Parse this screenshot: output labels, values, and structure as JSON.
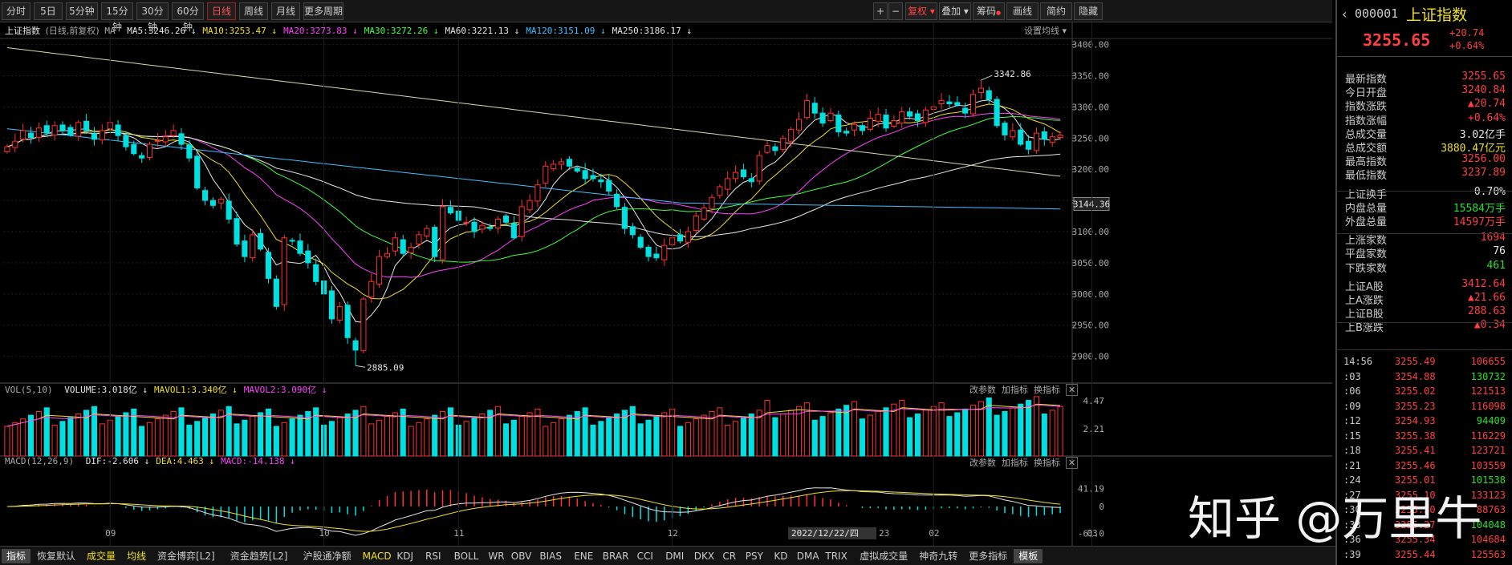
{
  "toolbar": {
    "periods": [
      "分时",
      "5日",
      "5分钟",
      "15分钟",
      "30分钟",
      "60分钟",
      "日线",
      "周线",
      "月线",
      "更多周期"
    ],
    "active_period": "日线",
    "right_buttons": [
      "复权",
      "叠加",
      "筹码",
      "画线",
      "简约",
      "隐藏"
    ],
    "plus": "+",
    "minus": "−"
  },
  "main": {
    "title": "上证指数",
    "subtitle": "(日线,前复权)",
    "ma_label": "MA",
    "ma_items": [
      {
        "text": "MA5:3246.26",
        "color": "#e6e6e6"
      },
      {
        "text": "MA10:3253.47",
        "color": "#f0e020"
      },
      {
        "text": "MA20:3273.83",
        "color": "#ff40ff"
      },
      {
        "text": "MA30:3272.26",
        "color": "#40ff40"
      },
      {
        "text": "MA60:3221.13",
        "color": "#e6e6e6"
      },
      {
        "text": "MA120:3151.09",
        "color": "#40c0ff"
      },
      {
        "text": "MA250:3186.17",
        "color": "#e6e6e6"
      }
    ],
    "settings": "设置均线",
    "high_label": "3342.86",
    "low_label": "2885.09",
    "current_price_tag": "3144.36",
    "y_ticks": [
      "3400.00",
      "3350.00",
      "3300.00",
      "3250.00",
      "3200.00",
      "3150.00",
      "3100.00",
      "3050.00",
      "3000.00",
      "2950.00",
      "2900.00"
    ],
    "x_labels": [
      "09",
      "10",
      "11",
      "12",
      "02",
      "03"
    ],
    "date_tag": "2022/12/22/四",
    "date_tag_suffix": "23"
  },
  "volume": {
    "title": "VOL(5,10)",
    "items": [
      {
        "text": "VOLUME:3.018亿",
        "color": "#e6e6e6"
      },
      {
        "text": "MAVOL1:3.340亿",
        "color": "#f0e020"
      },
      {
        "text": "MAVOL2:3.090亿",
        "color": "#ff40ff"
      }
    ],
    "y_ticks": [
      "4.47",
      "2.21"
    ],
    "actions": [
      "改参数",
      "加指标",
      "换指标"
    ]
  },
  "macd": {
    "title": "MACD(12,26,9)",
    "items": [
      {
        "text": "DIF:-2.606",
        "color": "#e6e6e6"
      },
      {
        "text": "DEA:4.463",
        "color": "#f0e020"
      },
      {
        "text": "MACD:-14.138",
        "color": "#ff40ff"
      }
    ],
    "y_ticks": [
      "41.19",
      "0",
      "-61.0"
    ],
    "actions": [
      "改参数",
      "加指标",
      "换指标"
    ]
  },
  "panel": {
    "code": "000001",
    "name": "上证指数",
    "price": "3255.65",
    "change": "+20.74",
    "change_pct": "+0.64%",
    "stats": [
      {
        "label": "最新指数",
        "value": "3255.65",
        "color": "red"
      },
      {
        "label": "今日开盘",
        "value": "3240.84",
        "color": "red"
      },
      {
        "label": "指数涨跌",
        "value": "▲20.74",
        "color": "red"
      },
      {
        "label": "指数涨幅",
        "value": "+0.64%",
        "color": "red"
      },
      {
        "label": "总成交量",
        "value": "3.02亿手",
        "color": "white"
      },
      {
        "label": "总成交额",
        "value": "3880.47亿元",
        "color": "yellow"
      },
      {
        "label": "最高指数",
        "value": "3256.00",
        "color": "red"
      },
      {
        "label": "最低指数",
        "value": "3237.89",
        "color": "red"
      },
      {
        "label": "上证换手",
        "value": "0.70%",
        "color": "white"
      },
      {
        "label": "内盘总量",
        "value": "15584万手",
        "color": "green"
      },
      {
        "label": "外盘总量",
        "value": "14597万手",
        "color": "red"
      },
      {
        "label": "上涨家数",
        "value": "1694",
        "color": "red"
      },
      {
        "label": "平盘家数",
        "value": "76",
        "color": "white"
      },
      {
        "label": "下跌家数",
        "value": "461",
        "color": "green"
      },
      {
        "label": "上证A股",
        "value": "3412.64",
        "color": "red"
      },
      {
        "label": "上A涨跌",
        "value": "▲21.66",
        "color": "red"
      },
      {
        "label": "上证B股",
        "value": "288.63",
        "color": "red"
      },
      {
        "label": "上B涨跌",
        "value": "▲0.34",
        "color": "red"
      }
    ],
    "ticks": [
      {
        "time": "14:56",
        "price": "3255.49",
        "vol": "106655",
        "vc": "red"
      },
      {
        "time": ":03",
        "price": "3254.88",
        "vol": "130732",
        "vc": "green"
      },
      {
        "time": ":06",
        "price": "3255.02",
        "vol": "121513",
        "vc": "red"
      },
      {
        "time": ":09",
        "price": "3255.23",
        "vol": "116098",
        "vc": "red"
      },
      {
        "time": ":12",
        "price": "3254.93",
        "vol": "94409",
        "vc": "green"
      },
      {
        "time": ":15",
        "price": "3255.38",
        "vol": "116229",
        "vc": "red"
      },
      {
        "time": ":18",
        "price": "3255.41",
        "vol": "123721",
        "vc": "red"
      },
      {
        "time": ":21",
        "price": "3255.46",
        "vol": "103559",
        "vc": "red"
      },
      {
        "time": ":24",
        "price": "3255.01",
        "vol": "101538",
        "vc": "green"
      },
      {
        "time": ":27",
        "price": "3255.10",
        "vol": "133123",
        "vc": "red"
      },
      {
        "time": ":30",
        "price": "3255.30",
        "vol": "88763",
        "vc": "red"
      },
      {
        "time": ":33",
        "price": "3255.27",
        "vol": "104048",
        "vc": "green"
      },
      {
        "time": ":36",
        "price": "3255.34",
        "vol": "104684",
        "vc": "red"
      },
      {
        "time": ":39",
        "price": "3255.44",
        "vol": "125563",
        "vc": "red"
      }
    ]
  },
  "bottom_tabs": [
    "指标",
    "恢复默认",
    "成交量",
    "均线",
    "资金博弈[L2]",
    "资金趋势[L2]",
    "沪股通净额",
    "MACD",
    "KDJ",
    "RSI",
    "BOLL",
    "WR",
    "OBV",
    "BIAS",
    "ENE",
    "BRAR",
    "CCI",
    "DMI",
    "DKX",
    "CR",
    "PSY",
    "KD",
    "DMA",
    "TRIX",
    "虚拟成交量",
    "神奇九转",
    "更多指标",
    "模板"
  ],
  "watermark": "知乎 @万里牛",
  "colors": {
    "up": "#ff3030",
    "down": "#00e0e0",
    "bg": "#000000"
  },
  "chart_data": {
    "type": "candlestick",
    "y_range": [
      2870,
      3420
    ],
    "closes": [
      3236,
      3245,
      3262,
      3251,
      3266,
      3258,
      3270,
      3262,
      3255,
      3275,
      3262,
      3248,
      3262,
      3275,
      3254,
      3236,
      3225,
      3218,
      3240,
      3246,
      3252,
      3262,
      3240,
      3218,
      3170,
      3150,
      3142,
      3152,
      3120,
      3080,
      3060,
      3095,
      3072,
      3025,
      2980,
      3090,
      3085,
      3065,
      3050,
      3020,
      3000,
      2960,
      2980,
      2930,
      2910,
      2992,
      3020,
      3060,
      3065,
      3090,
      3065,
      3075,
      3095,
      3105,
      3060,
      3140,
      3130,
      3118,
      3115,
      3100,
      3110,
      3105,
      3120,
      3115,
      3090,
      3140,
      3150,
      3175,
      3205,
      3208,
      3212,
      3205,
      3197,
      3185,
      3185,
      3180,
      3165,
      3140,
      3105,
      3095,
      3075,
      3060,
      3058,
      3078,
      3090,
      3085,
      3100,
      3125,
      3138,
      3155,
      3172,
      3185,
      3195,
      3188,
      3180,
      3222,
      3238,
      3230,
      3250,
      3264,
      3280,
      3310,
      3290,
      3274,
      3290,
      3260,
      3258,
      3272,
      3262,
      3282,
      3288,
      3266,
      3278,
      3292,
      3285,
      3278,
      3295,
      3300,
      3310,
      3305,
      3303,
      3290,
      3320,
      3330,
      3312,
      3270,
      3255,
      3262,
      3240,
      3232,
      3258,
      3248,
      3252,
      3255
    ]
  }
}
